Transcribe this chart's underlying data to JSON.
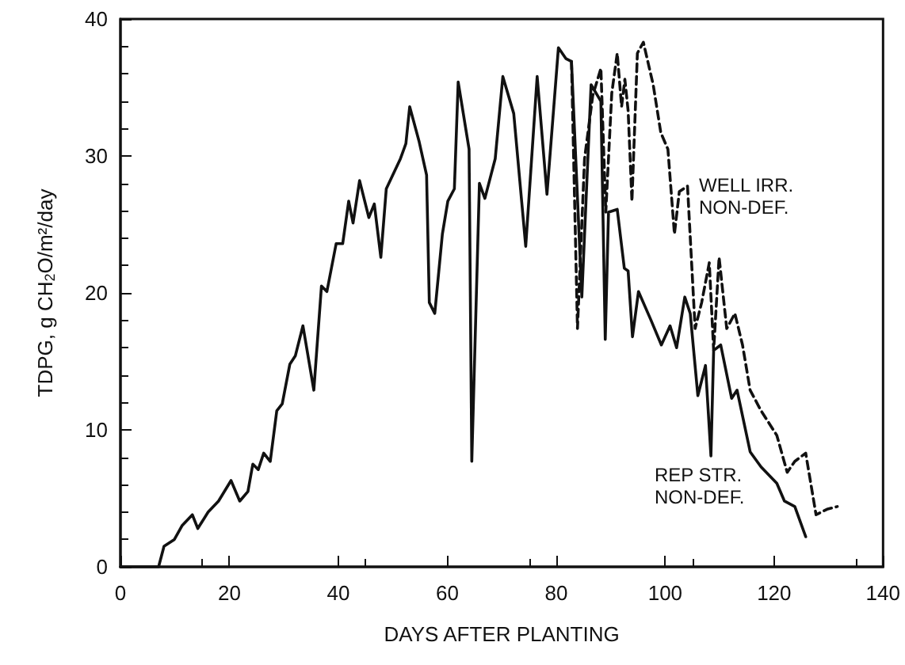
{
  "chart_data": {
    "type": "line",
    "xlabel": "DAYS AFTER PLANTING",
    "ylabel": "TDPG, g CH$_{2}$O/m²/day",
    "xlim": [
      0,
      140
    ],
    "xticks": [
      0,
      20,
      40,
      60,
      80,
      100,
      120,
      140
    ],
    "ylim": [
      0,
      40
    ],
    "yticks": [
      0,
      10,
      20,
      30,
      40
    ],
    "grid": false,
    "marker": "none",
    "series": [
      {
        "color": "#111111",
        "line_style": "dashed",
        "x": [
          82.8,
          83.9,
          85.2,
          86.7,
          88.2,
          89.1,
          90.2,
          91.2,
          92,
          92.6,
          93.2,
          93.9,
          94.9,
          96,
          97.8,
          99.2,
          100.5,
          101.7,
          102.6,
          104.1,
          105.5,
          106.7,
          108.1,
          108.9,
          109.9,
          111.3,
          112.8,
          114.2,
          115.6,
          117.6,
          120.5,
          122.4,
          123.8,
          125.8,
          127.7,
          129.7,
          131.6
        ],
        "values": [
          36.9,
          17.4,
          29.8,
          34.4,
          36.4,
          25.9,
          34.6,
          37.5,
          33.6,
          35.6,
          33.3,
          26.7,
          37.5,
          38.3,
          35.2,
          31.7,
          30.5,
          24.3,
          27.4,
          27.8,
          17.4,
          19.3,
          22.2,
          15.8,
          22.6,
          17.4,
          18.5,
          16.2,
          12.9,
          11.4,
          9.6,
          6.9,
          7.7,
          8.3,
          3.8,
          4.2,
          4.4
        ]
      },
      {
        "color": "#111111",
        "line_style": "solid",
        "x": [
          0,
          7,
          8,
          9.9,
          11.3,
          13.2,
          14.2,
          16.1,
          18,
          20.3,
          21.9,
          23.4,
          24.3,
          25.3,
          26.3,
          27.5,
          28.7,
          29.7,
          31.1,
          32.1,
          33.5,
          35.5,
          36.9,
          37.9,
          39.6,
          40.8,
          41.9,
          42.7,
          43.9,
          45.6,
          46.6,
          47.8,
          48.8,
          51.4,
          52.4,
          53.1,
          54.8,
          56.2,
          56.7,
          57.7,
          59.1,
          60.1,
          61.3,
          62,
          64,
          64.5,
          65.9,
          66.9,
          68.8,
          70.2,
          72.2,
          74.4,
          76.5,
          78.3,
          80.4,
          81.8,
          82.8,
          84.7,
          86.4,
          88.2,
          89,
          89.6,
          91.2,
          92.5,
          93.2,
          94,
          95.1,
          97.3,
          99.3,
          100.9,
          102.1,
          103.6,
          104.6,
          106,
          107.4,
          108.4,
          108.9,
          110.2,
          112.2,
          113.2,
          115.6,
          117.6,
          120.5,
          121.9,
          123.8,
          125.8
        ],
        "values": [
          0,
          0,
          1.5,
          2,
          3,
          3.8,
          2.8,
          4,
          4.8,
          6.3,
          4.8,
          5.5,
          7.5,
          7.1,
          8.3,
          7.7,
          11.4,
          11.9,
          14.8,
          15.4,
          17.6,
          12.9,
          20.5,
          20.1,
          23.6,
          23.6,
          26.7,
          25.1,
          28.2,
          25.5,
          26.5,
          22.6,
          27.6,
          29.8,
          30.9,
          33.6,
          31.1,
          28.6,
          19.3,
          18.5,
          24.3,
          26.7,
          27.6,
          35.4,
          30.5,
          7.7,
          28,
          26.9,
          29.8,
          35.8,
          33.1,
          23.4,
          35.8,
          27.2,
          37.9,
          37.1,
          36.9,
          19.7,
          35.2,
          34,
          16.6,
          25.9,
          26.1,
          21.8,
          21.6,
          16.8,
          20.1,
          18.1,
          16.2,
          17.6,
          16,
          19.7,
          18.5,
          12.5,
          14.7,
          8.1,
          15.8,
          16.2,
          12.3,
          12.9,
          8.4,
          7.3,
          6.1,
          4.8,
          4.4,
          2.2
        ]
      }
    ],
    "annotations": [
      "WELL IRR.\nNON-DEF.",
      "REP STR.\nNON-DEF."
    ]
  }
}
